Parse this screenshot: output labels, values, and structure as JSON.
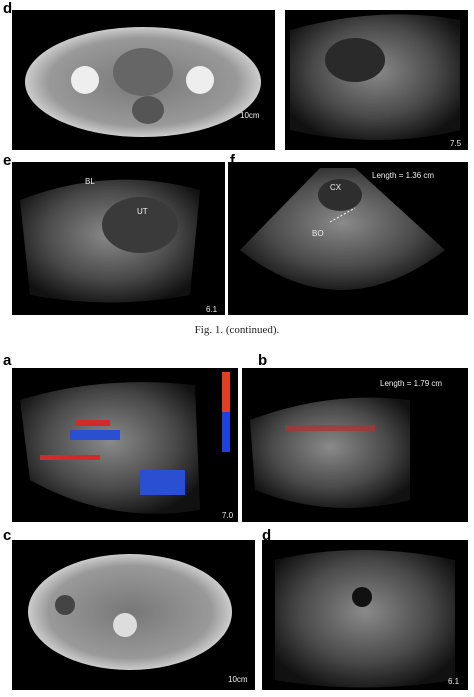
{
  "panels": [
    {
      "label": "d",
      "annotations": [
        "10cm"
      ]
    },
    {
      "label": "",
      "annotations": [
        "7.5"
      ]
    },
    {
      "label": "e",
      "annotations": [
        "BL",
        "UT",
        "6.1"
      ]
    },
    {
      "label": "f",
      "annotations": [
        "CX",
        "BO",
        "Length = 1.36 cm"
      ]
    },
    {
      "label": "a",
      "annotations": [
        "7.0"
      ]
    },
    {
      "label": "b",
      "annotations": [
        "Length = 1.79 cm"
      ]
    },
    {
      "label": "c",
      "annotations": [
        "10cm"
      ]
    },
    {
      "label": "d",
      "annotations": [
        "6.1"
      ]
    }
  ],
  "caption": "Fig. 1. (continued)."
}
